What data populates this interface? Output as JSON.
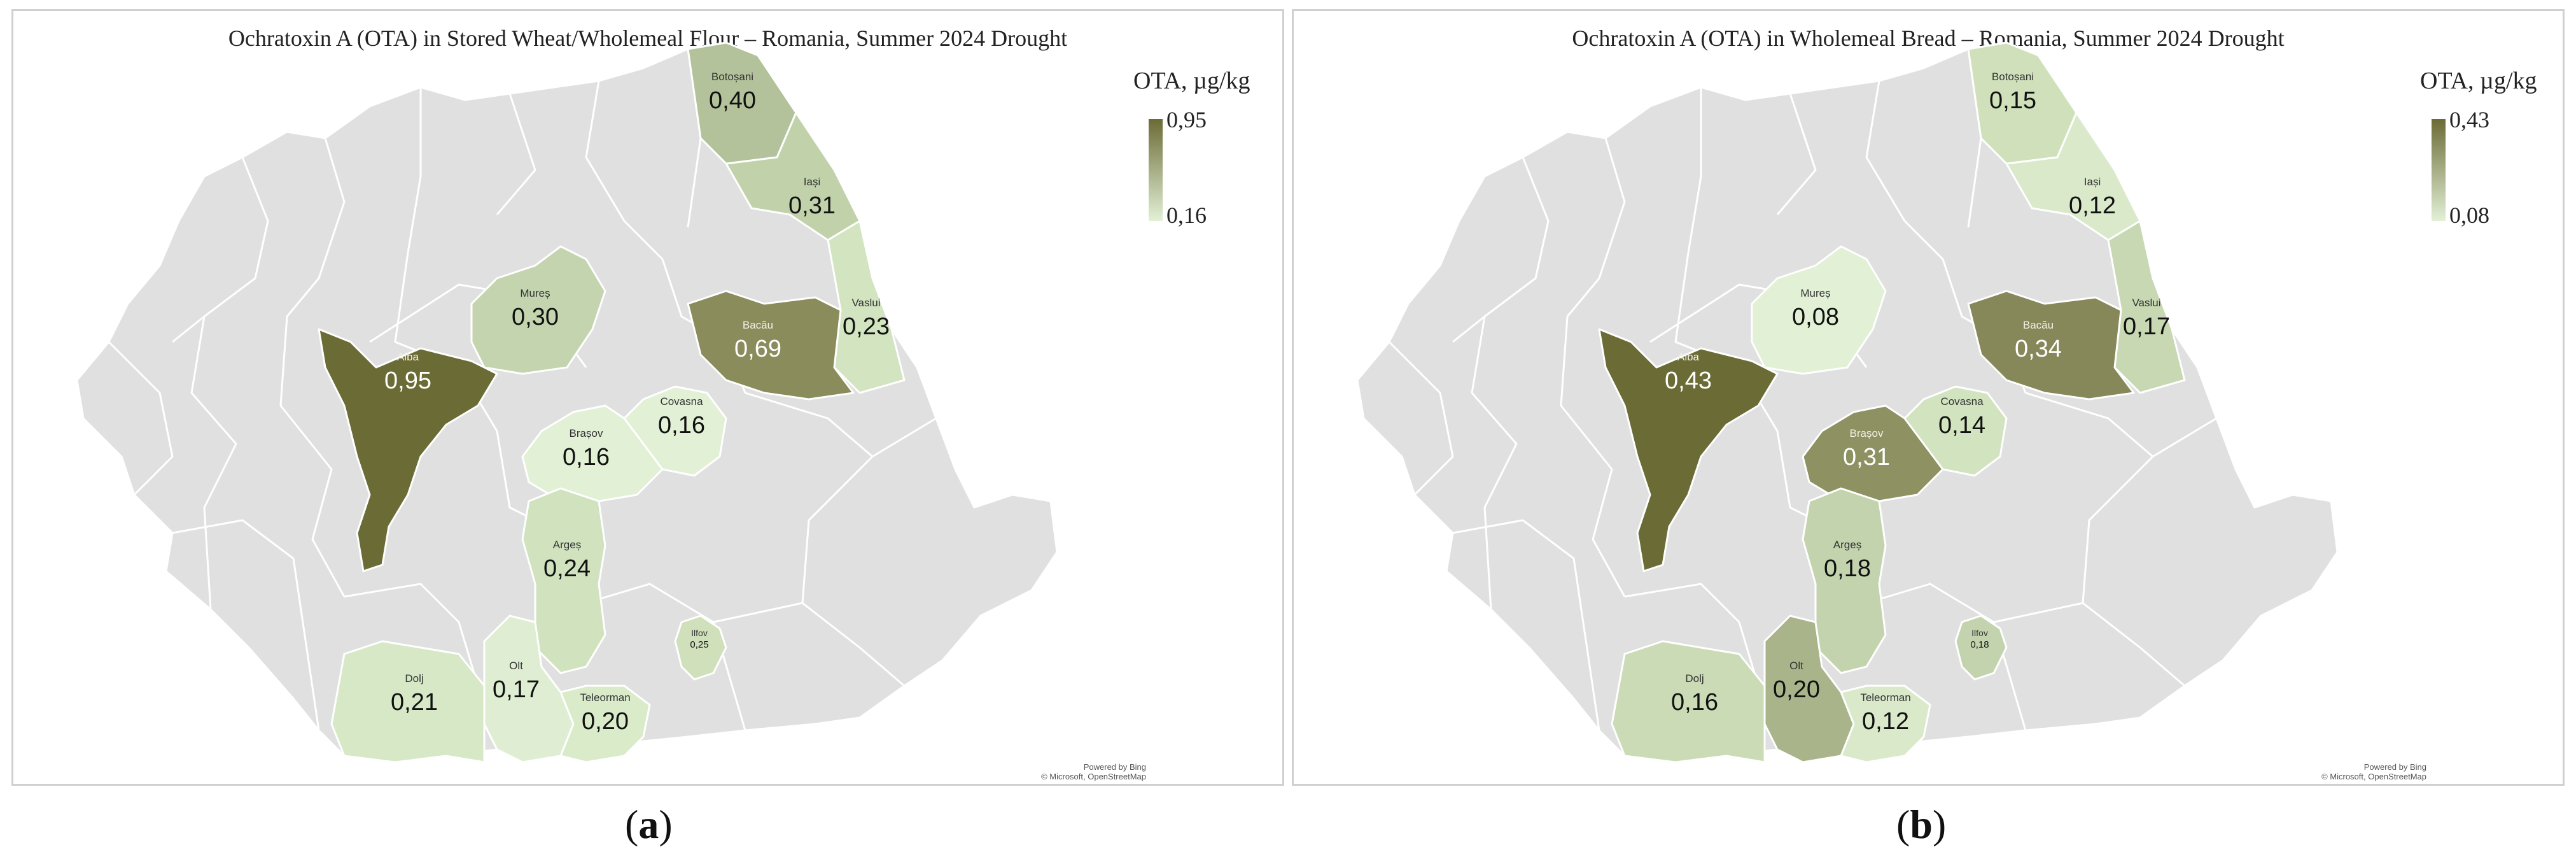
{
  "panels": [
    {
      "id": "a",
      "title": "Ochratoxin A (OTA) in Stored Wheat/Wholemeal Flour – Romania, Summer 2024 Drought",
      "legend": {
        "title": "OTA,  µg/kg",
        "max": "0,95",
        "min": "0,16",
        "color_max": "#6b6b35",
        "color_min": "#e2f0d6"
      },
      "caption_letter": "a",
      "credit": [
        "Powered by Bing",
        "© Microsoft, OpenStreetMap"
      ],
      "counties": [
        {
          "name": "Botoșani",
          "value": "0,40",
          "color": "#b3c29a"
        },
        {
          "name": "Iași",
          "value": "0,31",
          "color": "#c1d2ab"
        },
        {
          "name": "Mureș",
          "value": "0,30",
          "color": "#c4d4ae"
        },
        {
          "name": "Vaslui",
          "value": "0,23",
          "color": "#d2e4c0"
        },
        {
          "name": "Alba",
          "value": "0,95",
          "color": "#6b6b35"
        },
        {
          "name": "Bacău",
          "value": "0,69",
          "color": "#8a8c5c"
        },
        {
          "name": "Brașov",
          "value": "0,16",
          "color": "#e2f0d6"
        },
        {
          "name": "Covasna",
          "value": "0,16",
          "color": "#e2f0d6"
        },
        {
          "name": "Argeș",
          "value": "0,24",
          "color": "#d0e2be"
        },
        {
          "name": "Ilfov",
          "value": "0,25",
          "color": "#cfe0bb"
        },
        {
          "name": "Dolj",
          "value": "0,21",
          "color": "#d6e8c6"
        },
        {
          "name": "Olt",
          "value": "0,17",
          "color": "#dfeed2"
        },
        {
          "name": "Teleorman",
          "value": "0,20",
          "color": "#d9ebc9"
        }
      ]
    },
    {
      "id": "b",
      "title": "Ochratoxin A (OTA) in Wholemeal Bread – Romania, Summer 2024 Drought",
      "legend": {
        "title": "OTA, µg/kg",
        "max": "0,43",
        "min": "0,08",
        "color_max": "#6b6b35",
        "color_min": "#e2f0d6"
      },
      "caption_letter": "b",
      "credit": [
        "Powered by Bing",
        "© Microsoft, OpenStreetMap"
      ],
      "counties": [
        {
          "name": "Botoșani",
          "value": "0,15",
          "color": "#cfe0bb"
        },
        {
          "name": "Iași",
          "value": "0,12",
          "color": "#d9e9c9"
        },
        {
          "name": "Mureș",
          "value": "0,08",
          "color": "#e2f0d6"
        },
        {
          "name": "Vaslui",
          "value": "0,17",
          "color": "#c7d8b2"
        },
        {
          "name": "Alba",
          "value": "0,43",
          "color": "#6b6b35"
        },
        {
          "name": "Bacău",
          "value": "0,34",
          "color": "#86885a"
        },
        {
          "name": "Brașov",
          "value": "0,31",
          "color": "#8e9161"
        },
        {
          "name": "Covasna",
          "value": "0,14",
          "color": "#d2e3bf"
        },
        {
          "name": "Argeș",
          "value": "0,18",
          "color": "#c3d3ad"
        },
        {
          "name": "Ilfov",
          "value": "0,18",
          "color": "#c3d3ad"
        },
        {
          "name": "Dolj",
          "value": "0,16",
          "color": "#cadbb5"
        },
        {
          "name": "Olt",
          "value": "0,20",
          "color": "#a9b48a"
        },
        {
          "name": "Teleorman",
          "value": "0,12",
          "color": "#d9e9c9"
        }
      ]
    }
  ]
}
